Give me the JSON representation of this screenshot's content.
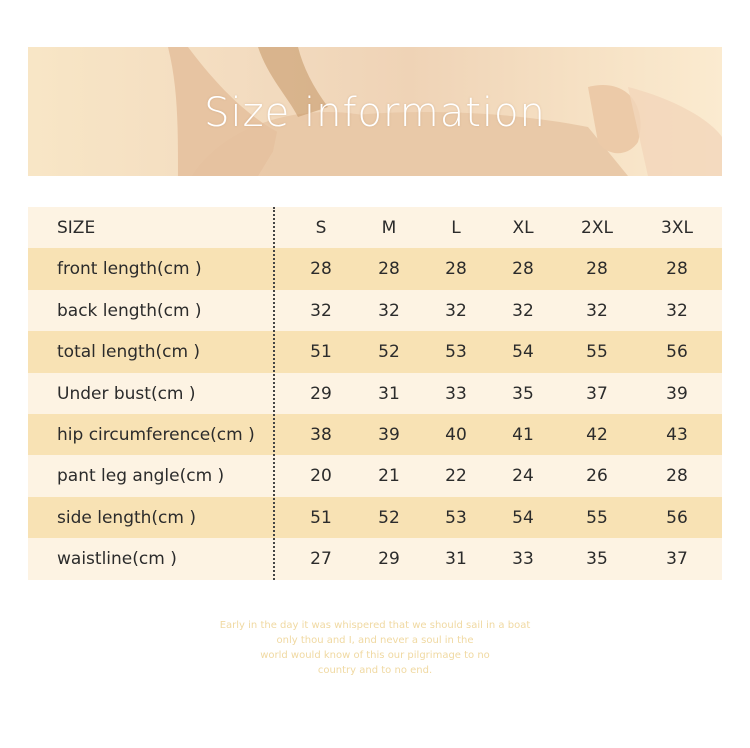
{
  "banner": {
    "title": "Size information"
  },
  "table": {
    "header": [
      "SIZE",
      "S",
      "M",
      "L",
      "XL",
      "2XL",
      "3XL"
    ],
    "rows": [
      [
        "front length(cm )",
        28,
        28,
        28,
        28,
        28,
        28
      ],
      [
        "back length(cm )",
        32,
        32,
        32,
        32,
        32,
        32
      ],
      [
        "total length(cm )",
        51,
        52,
        53,
        54,
        55,
        56
      ],
      [
        "Under bust(cm )",
        29,
        31,
        33,
        35,
        37,
        39
      ],
      [
        "hip circumference(cm )",
        38,
        39,
        40,
        41,
        42,
        43
      ],
      [
        "pant leg angle(cm )",
        20,
        21,
        22,
        24,
        26,
        28
      ],
      [
        "side length(cm )",
        51,
        52,
        53,
        54,
        55,
        56
      ],
      [
        "waistline(cm )",
        27,
        29,
        31,
        33,
        35,
        37
      ]
    ]
  },
  "footer": {
    "lines": [
      "Early in the day it was whispered that we should sail in a boat",
      "only thou and I, and never a soul in the",
      "world would know of this our pilgrimage to no",
      "country and to no end."
    ]
  }
}
